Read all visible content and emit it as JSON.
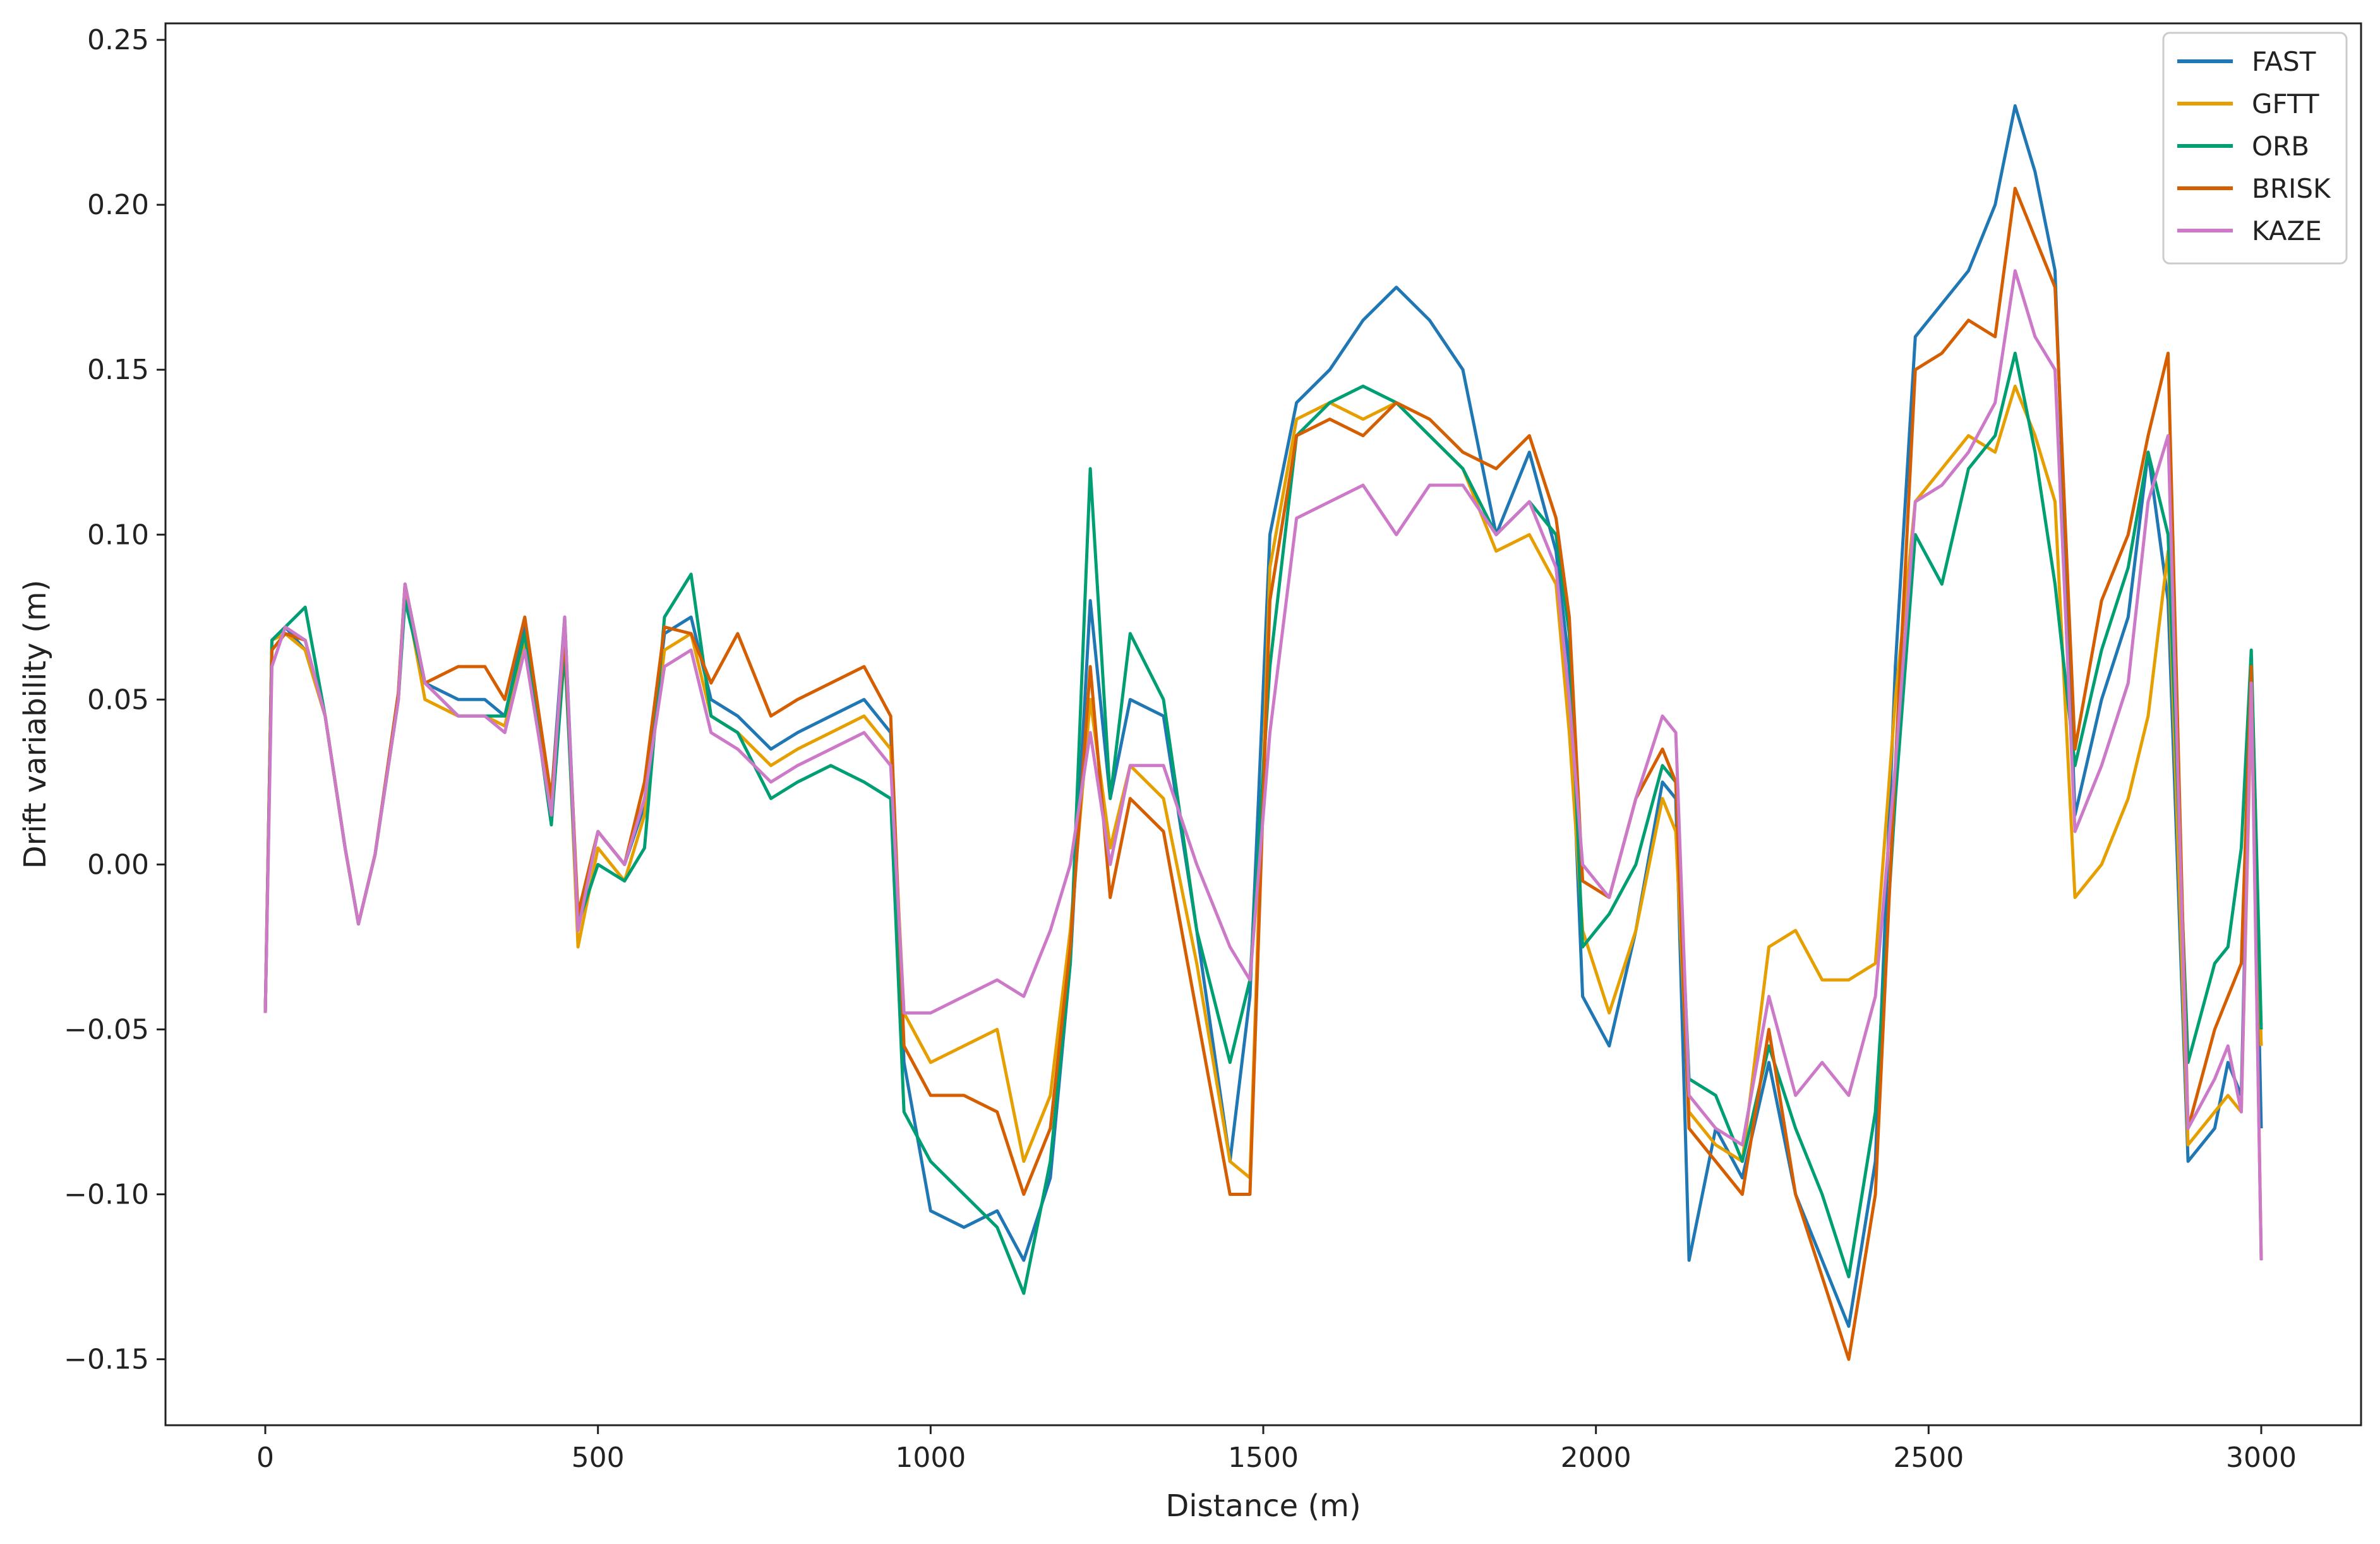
{
  "chart_data": {
    "type": "line",
    "title": "",
    "xlabel": "Distance (m)",
    "ylabel": "Drift variability (m)",
    "xlim": [
      -150,
      3150
    ],
    "ylim": [
      -0.17,
      0.255
    ],
    "xticks": [
      0,
      500,
      1000,
      1500,
      2000,
      2500,
      3000
    ],
    "yticks": [
      -0.15,
      -0.1,
      -0.05,
      0.0,
      0.05,
      0.1,
      0.15,
      0.2,
      0.25
    ],
    "ytick_labels": [
      "−0.15",
      "−0.10",
      "−0.05",
      "0.00",
      "0.05",
      "0.10",
      "0.15",
      "0.20",
      "0.25"
    ],
    "grid": false,
    "legend": "top-right",
    "x": [
      0,
      10,
      30,
      60,
      90,
      120,
      140,
      165,
      200,
      210,
      240,
      290,
      330,
      360,
      390,
      430,
      450,
      470,
      500,
      540,
      570,
      600,
      640,
      670,
      710,
      760,
      800,
      850,
      900,
      940,
      960,
      1000,
      1050,
      1100,
      1140,
      1180,
      1210,
      1240,
      1270,
      1300,
      1350,
      1400,
      1450,
      1480,
      1510,
      1550,
      1600,
      1650,
      1700,
      1750,
      1800,
      1850,
      1900,
      1940,
      1960,
      1980,
      2020,
      2060,
      2100,
      2120,
      2140,
      2180,
      2220,
      2260,
      2300,
      2340,
      2380,
      2420,
      2450,
      2480,
      2520,
      2560,
      2600,
      2630,
      2660,
      2690,
      2720,
      2760,
      2800,
      2830,
      2860,
      2890,
      2930,
      2950,
      2970,
      2985,
      3000
    ],
    "series": [
      {
        "name": "FAST",
        "color": "#1f77b4",
        "values": [
          -0.045,
          0.068,
          0.072,
          0.065,
          0.045,
          0.005,
          -0.018,
          0.003,
          0.052,
          0.085,
          0.055,
          0.05,
          0.05,
          0.045,
          0.072,
          0.02,
          0.075,
          -0.018,
          0.01,
          0.0,
          0.018,
          0.07,
          0.075,
          0.05,
          0.045,
          0.035,
          0.04,
          0.045,
          0.05,
          0.04,
          -0.06,
          -0.105,
          -0.11,
          -0.105,
          -0.12,
          -0.095,
          -0.03,
          0.08,
          0.02,
          0.05,
          0.045,
          -0.02,
          -0.09,
          -0.04,
          0.1,
          0.14,
          0.15,
          0.165,
          0.175,
          0.165,
          0.15,
          0.1,
          0.125,
          0.095,
          0.06,
          -0.04,
          -0.055,
          -0.02,
          0.025,
          0.02,
          -0.12,
          -0.08,
          -0.095,
          -0.06,
          -0.1,
          -0.12,
          -0.14,
          -0.09,
          0.06,
          0.16,
          0.17,
          0.18,
          0.2,
          0.23,
          0.21,
          0.18,
          0.015,
          0.05,
          0.075,
          0.125,
          0.08,
          -0.09,
          -0.08,
          -0.06,
          -0.07,
          0.06,
          -0.08
        ]
      },
      {
        "name": "GFTT",
        "color": "#e69f00",
        "values": [
          -0.045,
          0.068,
          0.07,
          0.065,
          0.045,
          0.005,
          -0.018,
          0.003,
          0.05,
          0.083,
          0.05,
          0.045,
          0.045,
          0.042,
          0.068,
          0.015,
          0.07,
          -0.025,
          0.005,
          -0.005,
          0.015,
          0.065,
          0.07,
          0.045,
          0.04,
          0.03,
          0.035,
          0.04,
          0.045,
          0.035,
          -0.045,
          -0.06,
          -0.055,
          -0.05,
          -0.09,
          -0.07,
          -0.02,
          0.05,
          0.005,
          0.03,
          0.02,
          -0.03,
          -0.09,
          -0.095,
          0.09,
          0.135,
          0.14,
          0.135,
          0.14,
          0.13,
          0.12,
          0.095,
          0.1,
          0.085,
          0.04,
          -0.02,
          -0.045,
          -0.02,
          0.02,
          0.01,
          -0.075,
          -0.085,
          -0.09,
          -0.025,
          -0.02,
          -0.035,
          -0.035,
          -0.03,
          0.05,
          0.11,
          0.12,
          0.13,
          0.125,
          0.145,
          0.13,
          0.11,
          -0.01,
          0.0,
          0.02,
          0.045,
          0.095,
          -0.085,
          -0.075,
          -0.07,
          -0.075,
          0.05,
          -0.055
        ]
      },
      {
        "name": "ORB",
        "color": "#009e73",
        "values": [
          -0.045,
          0.068,
          0.072,
          0.078,
          0.045,
          0.005,
          -0.018,
          0.003,
          0.05,
          0.08,
          0.055,
          0.045,
          0.045,
          0.045,
          0.07,
          0.012,
          0.065,
          -0.018,
          0.0,
          -0.005,
          0.005,
          0.075,
          0.088,
          0.045,
          0.04,
          0.02,
          0.025,
          0.03,
          0.025,
          0.02,
          -0.075,
          -0.09,
          -0.1,
          -0.11,
          -0.13,
          -0.09,
          -0.03,
          0.12,
          0.02,
          0.07,
          0.05,
          -0.02,
          -0.06,
          -0.035,
          0.06,
          0.13,
          0.14,
          0.145,
          0.14,
          0.13,
          0.12,
          0.1,
          0.11,
          0.1,
          0.07,
          -0.025,
          -0.015,
          0.0,
          0.03,
          0.025,
          -0.065,
          -0.07,
          -0.09,
          -0.055,
          -0.08,
          -0.1,
          -0.125,
          -0.075,
          0.02,
          0.1,
          0.085,
          0.12,
          0.13,
          0.155,
          0.125,
          0.085,
          0.03,
          0.065,
          0.09,
          0.125,
          0.1,
          -0.06,
          -0.03,
          -0.025,
          0.005,
          0.065,
          -0.05
        ]
      },
      {
        "name": "BRISK",
        "color": "#d55e00",
        "values": [
          -0.045,
          0.065,
          0.07,
          0.068,
          0.045,
          0.005,
          -0.018,
          0.003,
          0.052,
          0.085,
          0.055,
          0.06,
          0.06,
          0.05,
          0.075,
          0.02,
          0.07,
          -0.015,
          0.01,
          0.0,
          0.025,
          0.072,
          0.07,
          0.055,
          0.07,
          0.045,
          0.05,
          0.055,
          0.06,
          0.045,
          -0.055,
          -0.07,
          -0.07,
          -0.075,
          -0.1,
          -0.08,
          -0.025,
          0.06,
          -0.01,
          0.02,
          0.01,
          -0.045,
          -0.1,
          -0.1,
          0.08,
          0.13,
          0.135,
          0.13,
          0.14,
          0.135,
          0.125,
          0.12,
          0.13,
          0.105,
          0.075,
          -0.005,
          -0.01,
          0.02,
          0.035,
          0.025,
          -0.08,
          -0.09,
          -0.1,
          -0.05,
          -0.1,
          -0.125,
          -0.15,
          -0.1,
          0.03,
          0.15,
          0.155,
          0.165,
          0.16,
          0.205,
          0.19,
          0.175,
          0.035,
          0.08,
          0.1,
          0.13,
          0.155,
          -0.08,
          -0.05,
          -0.04,
          -0.03,
          0.06,
          -0.12
        ]
      },
      {
        "name": "KAZE",
        "color": "#cc79c8",
        "values": [
          -0.045,
          0.06,
          0.072,
          0.068,
          0.045,
          0.005,
          -0.018,
          0.003,
          0.05,
          0.085,
          0.055,
          0.045,
          0.045,
          0.04,
          0.065,
          0.015,
          0.075,
          -0.02,
          0.01,
          0.0,
          0.02,
          0.06,
          0.065,
          0.04,
          0.035,
          0.025,
          0.03,
          0.035,
          0.04,
          0.03,
          -0.045,
          -0.045,
          -0.04,
          -0.035,
          -0.04,
          -0.02,
          0.0,
          0.04,
          0.0,
          0.03,
          0.03,
          0.0,
          -0.025,
          -0.035,
          0.04,
          0.105,
          0.11,
          0.115,
          0.1,
          0.115,
          0.115,
          0.1,
          0.11,
          0.09,
          0.05,
          0.0,
          -0.01,
          0.02,
          0.045,
          0.04,
          -0.07,
          -0.08,
          -0.085,
          -0.04,
          -0.07,
          -0.06,
          -0.07,
          -0.04,
          0.03,
          0.11,
          0.115,
          0.125,
          0.14,
          0.18,
          0.16,
          0.15,
          0.01,
          0.03,
          0.055,
          0.11,
          0.13,
          -0.08,
          -0.065,
          -0.055,
          -0.075,
          0.055,
          -0.12
        ]
      }
    ]
  }
}
